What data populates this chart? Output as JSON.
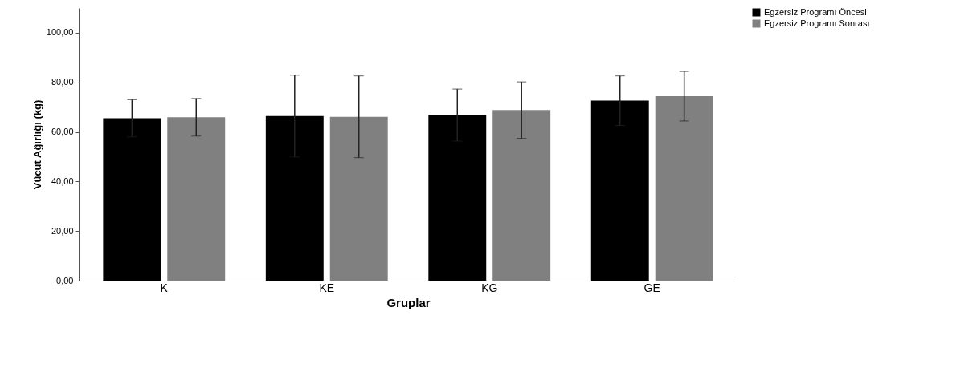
{
  "chart_data": {
    "type": "bar",
    "xlabel": "Gruplar",
    "ylabel": "Vücut Ağırlığı (kg)",
    "categories": [
      "K",
      "KE",
      "KG",
      "GE"
    ],
    "series": [
      {
        "name": "Egzersiz Programı Öncesi",
        "color": "#000000",
        "values": [
          65.5,
          66.4,
          66.8,
          72.6
        ],
        "errors": [
          7.5,
          16.5,
          10.5,
          10
        ]
      },
      {
        "name": "Egzersiz Programı Sonrası",
        "color": "#808080",
        "values": [
          65.9,
          66.1,
          68.8,
          74.4
        ],
        "errors": [
          7.6,
          16.5,
          11.4,
          10
        ]
      }
    ],
    "ylim": [
      0,
      110
    ],
    "yticks": [
      {
        "value": 0,
        "label": "0,00"
      },
      {
        "value": 20,
        "label": "20,00"
      },
      {
        "value": 40,
        "label": "40,00"
      },
      {
        "value": 60,
        "label": "60,00"
      },
      {
        "value": 80,
        "label": "80,00"
      },
      {
        "value": 100,
        "label": "100,00"
      }
    ],
    "grid": false,
    "legend": "top right"
  }
}
